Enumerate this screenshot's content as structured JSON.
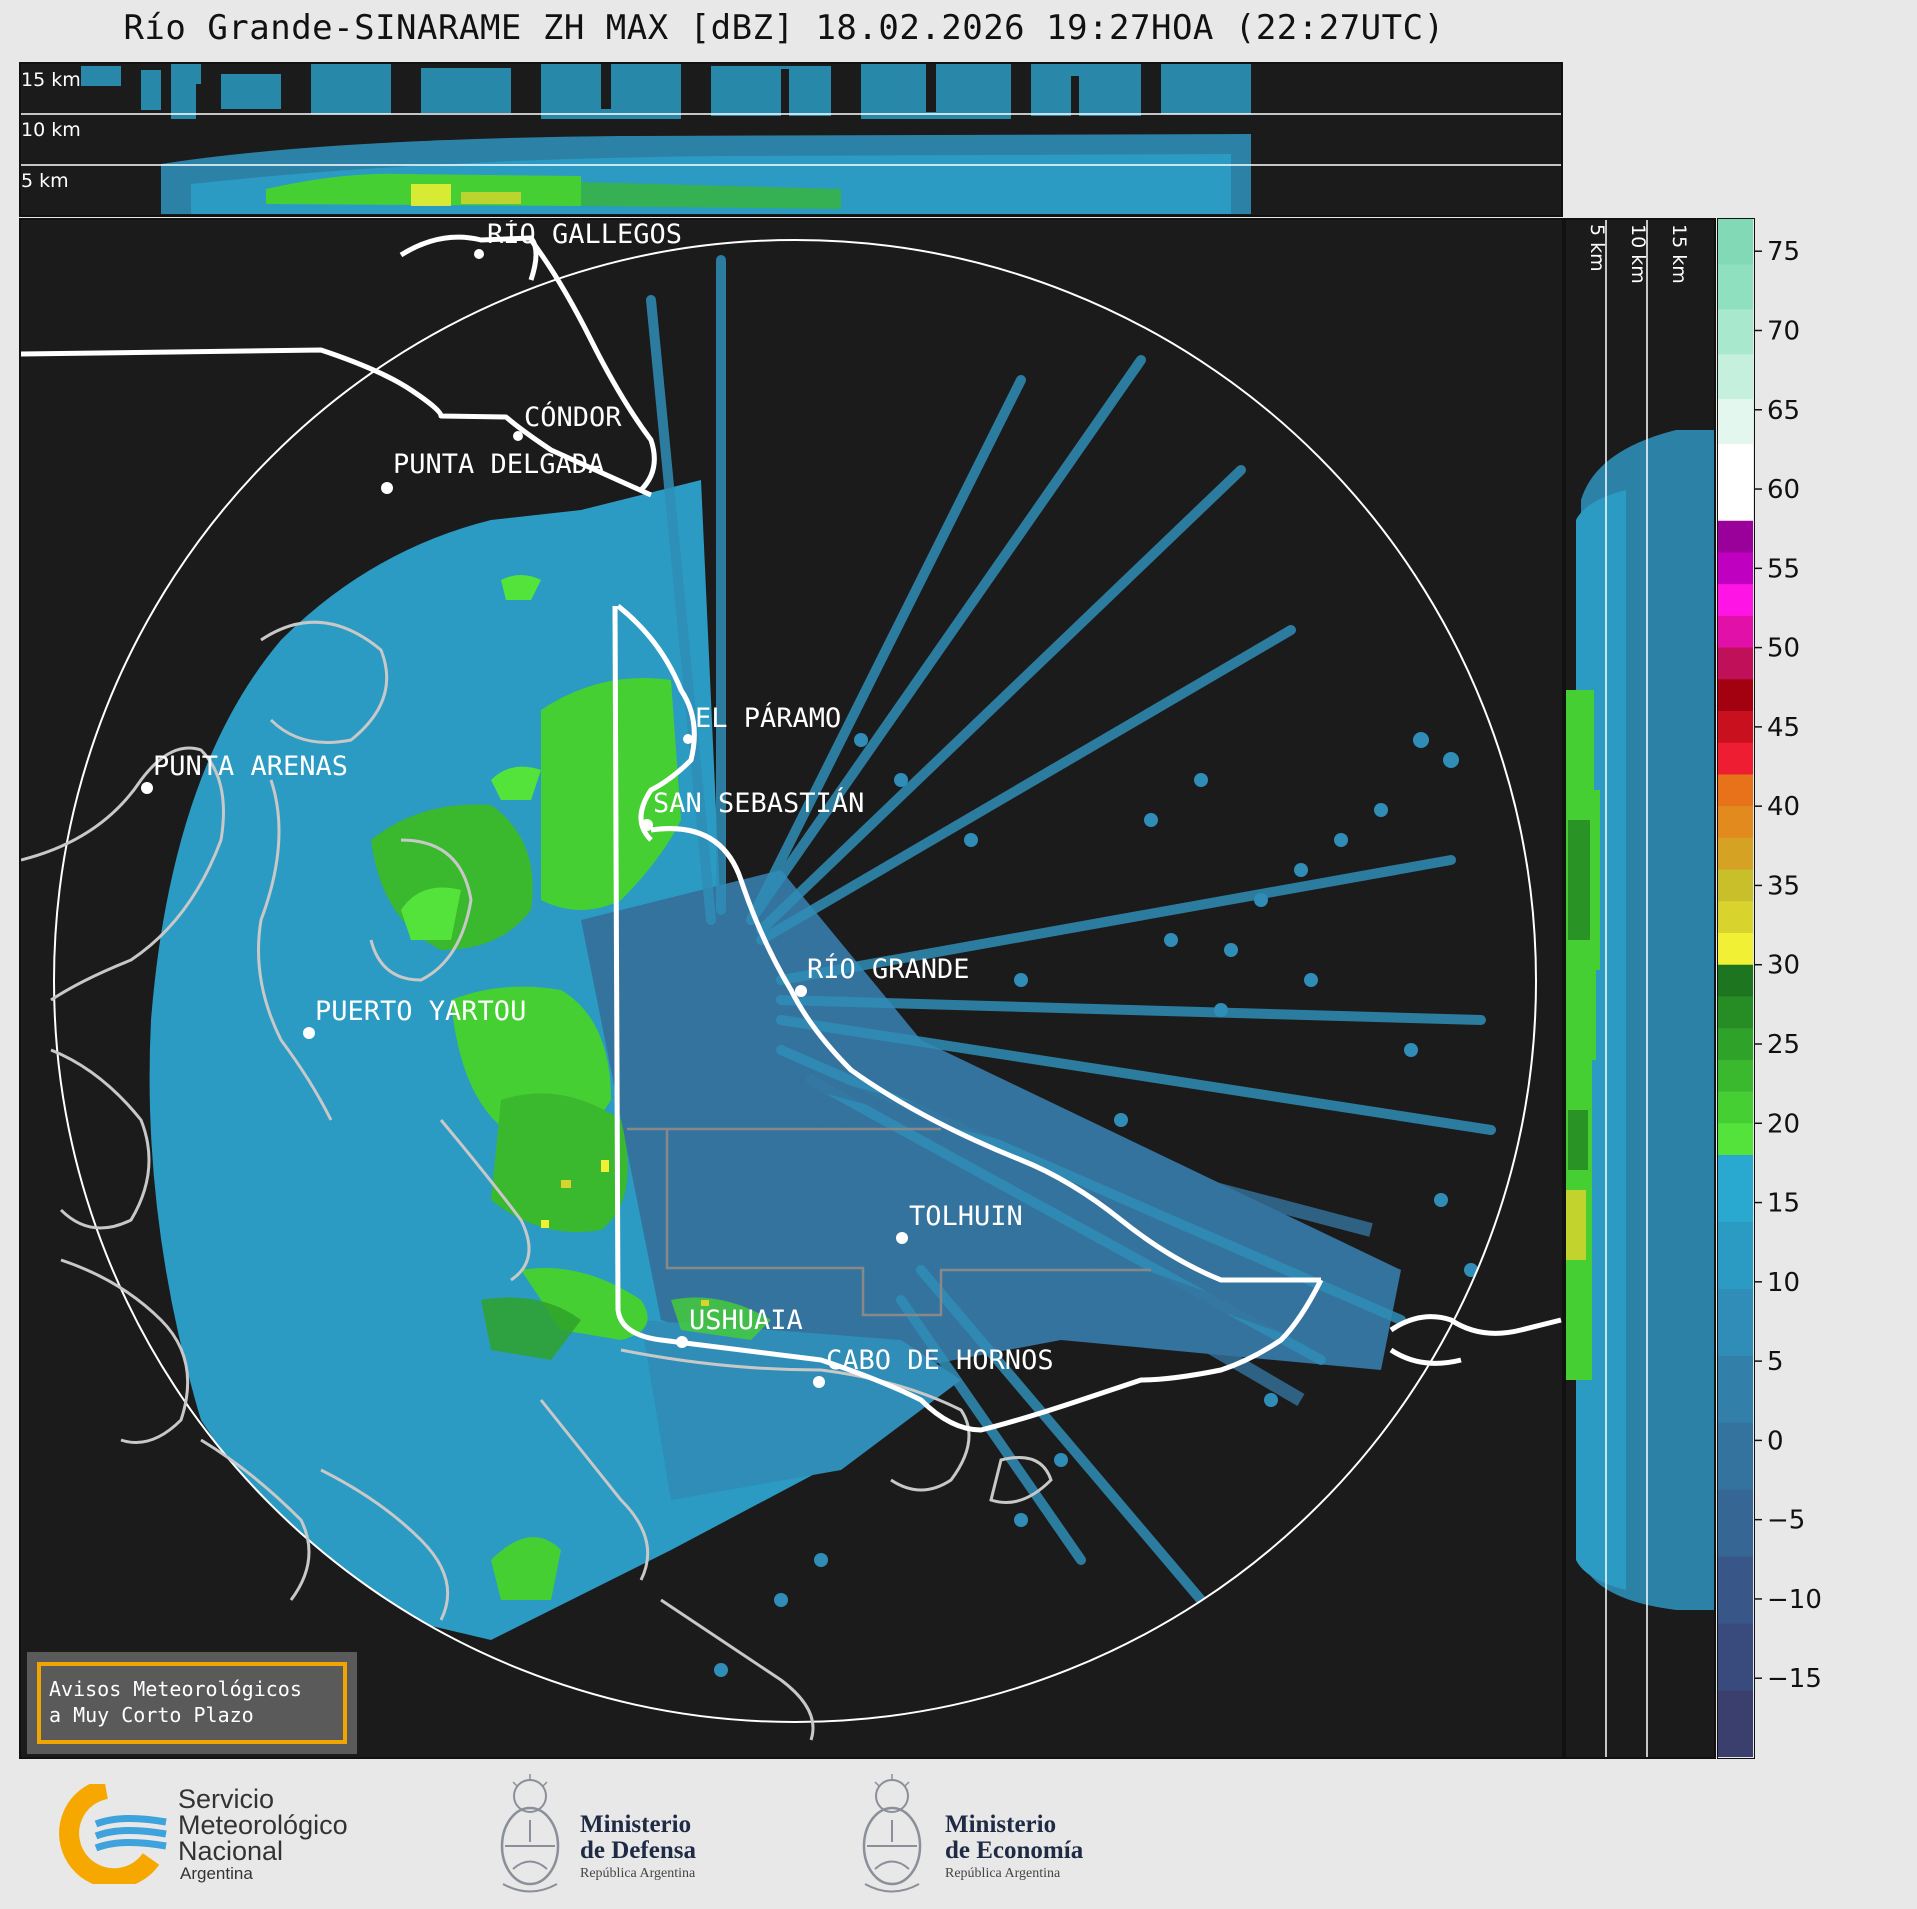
{
  "header": {
    "title": "Río Grande-SINARAME ZH MAX [dBZ] 18.02.2026 19:27HOA (22:27UTC)"
  },
  "top_section": {
    "height_labels": [
      "15 km",
      "10 km",
      "5 km"
    ]
  },
  "side_section": {
    "height_labels": [
      "5 km",
      "10 km",
      "15 km"
    ]
  },
  "map": {
    "cities": [
      {
        "name": "RÍO GALLEGOS"
      },
      {
        "name": "CÓNDOR"
      },
      {
        "name": "PUNTA DELGADA"
      },
      {
        "name": "EL PÁRAMO"
      },
      {
        "name": "PUNTA ARENAS"
      },
      {
        "name": "SAN SEBASTIÁN"
      },
      {
        "name": "RÍO GRANDE"
      },
      {
        "name": "PUERTO YARTOU"
      },
      {
        "name": "TOLHUIN"
      },
      {
        "name": "USHUAIA"
      },
      {
        "name": "CABO DE HORNOS"
      }
    ]
  },
  "colorbar": {
    "unit": "dBZ",
    "tick_labels": [
      "75",
      "70",
      "65",
      "60",
      "55",
      "50",
      "45",
      "40",
      "35",
      "30",
      "25",
      "20",
      "15",
      "10",
      "5",
      "0",
      "−5",
      "−10",
      "−15"
    ],
    "colors": {
      "range_-20_18": [
        "#3a3f6e",
        "#394a7c",
        "#385788",
        "#366693",
        "#34739e",
        "#3280aa",
        "#2f8db7",
        "#2b9bc3",
        "#29a8d0"
      ],
      "range_18_30": [
        "#54e33a",
        "#46cf33",
        "#3ab82e",
        "#2fa229",
        "#268c24",
        "#1e751f"
      ],
      "range_30_42": [
        "#f2f035",
        "#d8d42d",
        "#c9bf2b",
        "#d6a224",
        "#e38a1e",
        "#e7721a"
      ],
      "range_42_58": [
        "#ee1d32",
        "#c9101f",
        "#a30010",
        "#c0105a",
        "#e010a8",
        "#ff14e6",
        "#c000c0",
        "#9a009a"
      ],
      "range_60_77": [
        "#ffffff",
        "#e4f7ee",
        "#c6f0de",
        "#a8e8cc",
        "#8fe0be",
        "#82d9b6"
      ]
    }
  },
  "aviso": {
    "line1": "Avisos Meteorológicos",
    "line2": "a Muy Corto Plazo"
  },
  "footer": {
    "smn": {
      "line1": "Servicio",
      "line2": "Meteorológico",
      "line3": "Nacional",
      "line4": "Argentina"
    },
    "defensa": {
      "line1": "Ministerio",
      "line2": "de Defensa",
      "line3": "República Argentina"
    },
    "economia": {
      "line1": "Ministerio",
      "line2": "de Economía",
      "line3": "República Argentina"
    }
  }
}
